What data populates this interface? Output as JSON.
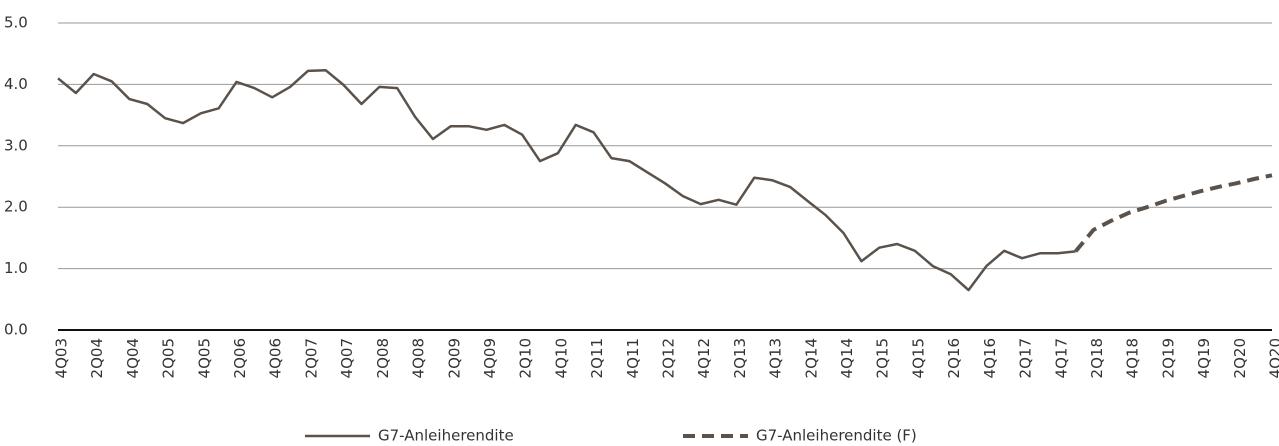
{
  "chart_data": {
    "type": "line",
    "categories": [
      "4Q03",
      null,
      "2Q04",
      null,
      "4Q04",
      null,
      "2Q05",
      null,
      "4Q05",
      null,
      "2Q06",
      null,
      "4Q06",
      null,
      "2Q07",
      null,
      "4Q07",
      null,
      "2Q08",
      null,
      "4Q08",
      null,
      "2Q09",
      null,
      "4Q09",
      null,
      "2Q10",
      null,
      "4Q10",
      null,
      "2Q11",
      null,
      "4Q11",
      null,
      "2Q12",
      null,
      "4Q12",
      null,
      "2Q13",
      null,
      "4Q13",
      null,
      "2Q14",
      null,
      "4Q14",
      null,
      "2Q15",
      null,
      "4Q15",
      null,
      "2Q16",
      null,
      "4Q16",
      null,
      "2Q17",
      null,
      "4Q17",
      null,
      "2Q18",
      null,
      "4Q18",
      null,
      "2Q19",
      null,
      "4Q19",
      null,
      "2Q20",
      null,
      "4Q20"
    ],
    "series": [
      {
        "name": "G7-Anleiherendite",
        "color": "#5b534b",
        "dashed": false,
        "values": [
          4.1,
          3.86,
          4.17,
          4.05,
          3.76,
          3.68,
          3.45,
          3.37,
          3.53,
          3.61,
          4.04,
          3.94,
          3.79,
          3.96,
          4.22,
          4.23,
          3.99,
          3.68,
          3.96,
          3.94,
          3.47,
          3.11,
          3.32,
          3.32,
          3.26,
          3.34,
          3.18,
          2.75,
          2.88,
          3.34,
          3.22,
          2.8,
          2.75,
          2.57,
          2.39,
          2.18,
          2.05,
          2.12,
          2.04,
          2.48,
          2.44,
          2.33,
          2.1,
          1.87,
          1.58,
          1.12,
          1.34,
          1.4,
          1.29,
          1.04,
          0.91,
          0.65,
          1.04,
          1.29,
          1.17,
          1.25,
          1.25,
          1.28,
          null,
          null,
          null,
          null,
          null,
          null,
          null,
          null,
          null,
          null,
          null
        ]
      },
      {
        "name": "G7-Anleiherendite (F)",
        "color": "#5b534b",
        "dashed": true,
        "values": [
          null,
          null,
          null,
          null,
          null,
          null,
          null,
          null,
          null,
          null,
          null,
          null,
          null,
          null,
          null,
          null,
          null,
          null,
          null,
          null,
          null,
          null,
          null,
          null,
          null,
          null,
          null,
          null,
          null,
          null,
          null,
          null,
          null,
          null,
          null,
          null,
          null,
          null,
          null,
          null,
          null,
          null,
          null,
          null,
          null,
          null,
          null,
          null,
          null,
          null,
          null,
          null,
          null,
          null,
          null,
          null,
          null,
          1.28,
          1.63,
          1.78,
          1.91,
          2.0,
          2.1,
          2.18,
          2.26,
          2.33,
          2.39,
          2.46,
          2.52
        ]
      }
    ],
    "ylim": [
      0,
      5
    ],
    "yticks": [
      {
        "value": 0,
        "label": "0.0"
      },
      {
        "value": 1,
        "label": "1.0"
      },
      {
        "value": 2,
        "label": "2.0"
      },
      {
        "value": 3,
        "label": "3.0"
      },
      {
        "value": 4,
        "label": "4.0"
      },
      {
        "value": 5,
        "label": "5.0"
      }
    ],
    "grid": true,
    "legend": "bottom"
  }
}
